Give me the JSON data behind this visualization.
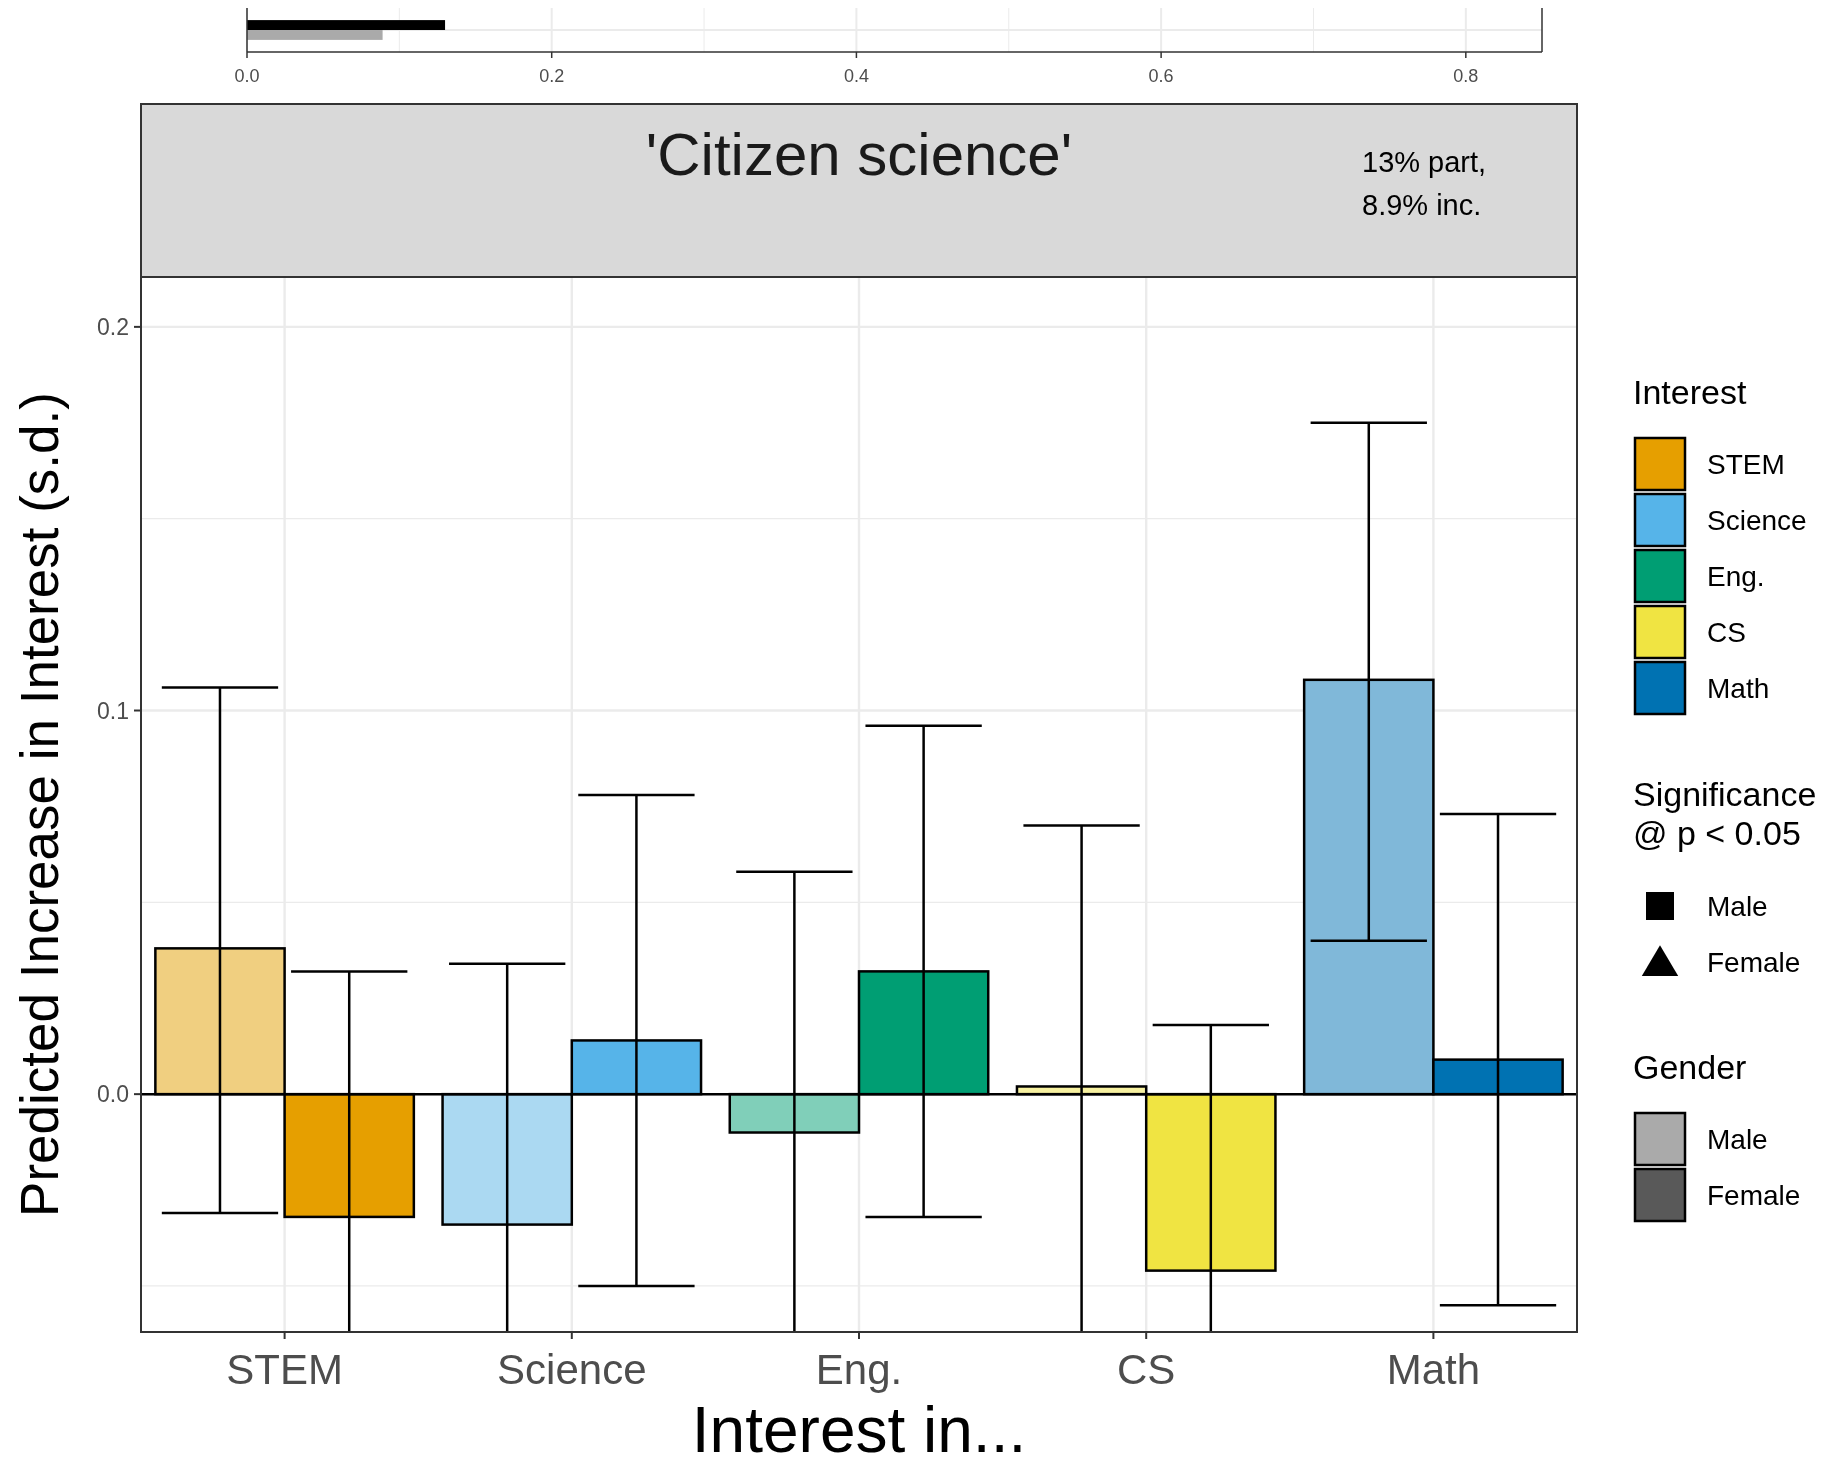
{
  "chart_data": [
    {
      "type": "bar",
      "orientation": "horizontal",
      "categories": [
        null
      ],
      "series": [
        {
          "color": "#000000",
          "values": [
            0.13
          ]
        },
        {
          "color": "#aaaaaa",
          "values": [
            0.089
          ]
        }
      ],
      "xlim": [
        0,
        0.85
      ],
      "xticks": [
        {
          "value": 0,
          "label": "0.0"
        },
        {
          "value": 0.1,
          "label": null
        },
        {
          "value": 0.2,
          "label": "0.2"
        },
        {
          "value": 0.3,
          "label": null
        },
        {
          "value": 0.4,
          "label": "0.4"
        },
        {
          "value": 0.5,
          "label": null
        },
        {
          "value": 0.6,
          "label": "0.6"
        },
        {
          "value": 0.7,
          "label": null
        },
        {
          "value": 0.8,
          "label": "0.8"
        }
      ],
      "grid": true,
      "tick_labels": "x"
    },
    {
      "type": "bar",
      "title": "'Citizen science'",
      "xlabel": "Interest in...",
      "ylabel": "Predicted Increase in Interest (s.d.)",
      "legend_title": "Gender",
      "categories": [
        "STEM",
        "Science",
        "Eng.",
        "CS",
        "Math"
      ],
      "series": [
        {
          "name": "Male",
          "color": "#aaaaaa",
          "colors": [
            "#f0cf80",
            "#abd9f2",
            "#80cfb9",
            "#f7f1a0",
            "#80b8d9"
          ],
          "values": [
            0.038,
            -0.034,
            -0.01,
            0.002,
            0.108
          ],
          "errors": [
            [
              -0.031,
              0.106
            ],
            [
              -0.062,
              0.034
            ],
            [
              -0.062,
              0.058
            ],
            [
              -0.062,
              0.07
            ],
            [
              0.04,
              0.175
            ]
          ]
        },
        {
          "name": "Female",
          "color": "#595959",
          "colors": [
            "#e69f00",
            "#56b4e9",
            "#009e73",
            "#f0e442",
            "#0072b2"
          ],
          "values": [
            -0.032,
            0.014,
            0.032,
            -0.046,
            0.009
          ],
          "errors": [
            [
              -0.062,
              0.032
            ],
            [
              -0.05,
              0.078
            ],
            [
              -0.032,
              0.096
            ],
            [
              -0.062,
              0.018
            ],
            [
              -0.055,
              0.073
            ]
          ]
        },
        {
          "name": "Male",
          "type": "scatter",
          "marker": "square",
          "color": "#000000",
          "values": [
            null,
            null,
            null,
            null,
            null
          ]
        },
        {
          "name": "Female",
          "type": "scatter",
          "marker": "triangle",
          "color": "#000000",
          "values": [
            null,
            null,
            null,
            null,
            null
          ]
        }
      ],
      "ylim": [
        -0.062,
        0.213
      ],
      "yticks": [
        {
          "value": -0.05,
          "label": null
        },
        {
          "value": 0,
          "label": "0.0"
        },
        {
          "value": 0.05,
          "label": null
        },
        {
          "value": 0.1,
          "label": "0.1"
        },
        {
          "value": 0.15,
          "label": null
        },
        {
          "value": 0.2,
          "label": "0.2"
        }
      ],
      "ref_lines": [
        {
          "axis": "y",
          "value": 0,
          "color": "#000000"
        }
      ],
      "annotations": [
        "13% part,\n8.9% inc.",
        "Interest",
        "Significance\n@ p < 0.05"
      ],
      "grid": true,
      "legend": "right"
    }
  ]
}
